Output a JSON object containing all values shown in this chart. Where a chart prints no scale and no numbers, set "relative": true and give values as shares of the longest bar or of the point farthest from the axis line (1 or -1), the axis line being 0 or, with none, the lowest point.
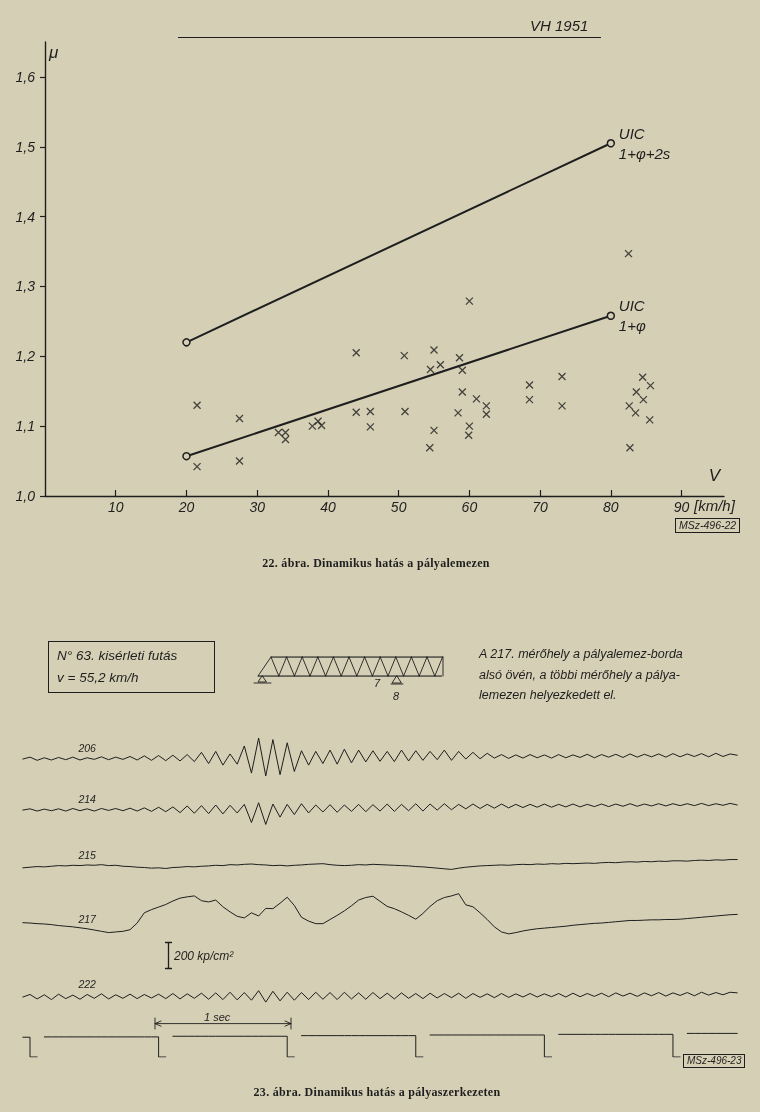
{
  "chart_data": [
    {
      "type": "scatter",
      "title": "22. ábra. Dinamikus hatás a pályalemezen",
      "subtitle": "VH 1951",
      "xlabel": "V",
      "ylabel": "μ",
      "annotations": [
        "[km/h]",
        "MSz-496-22"
      ],
      "xlim": [
        0,
        96
      ],
      "ylim": [
        1.0,
        1.65
      ],
      "xticks": [
        10,
        20,
        30,
        40,
        50,
        60,
        70,
        80,
        90
      ],
      "yticks": [
        {
          "value": 1.0,
          "label": "1,0"
        },
        {
          "value": 1.1,
          "label": "1,1"
        },
        {
          "value": 1.2,
          "label": "1,2"
        },
        {
          "value": 1.3,
          "label": "1,3"
        },
        {
          "value": 1.4,
          "label": "1,4"
        },
        {
          "value": 1.5,
          "label": "1,5"
        },
        {
          "value": 1.6,
          "label": "1,6"
        }
      ],
      "series": [
        {
          "type": "scatter",
          "color": "#1e1e1e",
          "marker": "cross",
          "x": [
            21.5,
            21.5,
            27.5,
            27.5,
            33,
            34,
            34,
            37.8,
            38.6,
            39.1,
            44,
            44,
            46,
            46,
            50.8,
            50.9,
            55,
            54.5,
            55.9,
            55,
            54.4,
            58.6,
            59,
            59,
            58.4,
            61,
            62.4,
            62.4,
            60,
            59.9,
            68.5,
            68.5,
            73.1,
            73.1,
            84.5,
            85.6,
            83.6,
            84.6,
            82.6,
            83.5,
            85.5,
            82.7,
            82.5,
            60
          ],
          "values": [
            1.13,
            1.042,
            1.111,
            1.05,
            1.091,
            1.091,
            1.081,
            1.1,
            1.107,
            1.101,
            1.205,
            1.12,
            1.121,
            1.099,
            1.201,
            1.121,
            1.209,
            1.181,
            1.188,
            1.094,
            1.069,
            1.198,
            1.18,
            1.149,
            1.119,
            1.139,
            1.129,
            1.117,
            1.1,
            1.087,
            1.159,
            1.138,
            1.171,
            1.129,
            1.17,
            1.158,
            1.149,
            1.138,
            1.129,
            1.119,
            1.109,
            1.069,
            1.347,
            1.279
          ]
        },
        {
          "type": "line",
          "name": "UIC 1+φ+2s",
          "color": "#1e1e1e",
          "marker": "circle",
          "x": [
            20,
            80
          ],
          "values": [
            1.22,
            1.505
          ]
        },
        {
          "type": "line",
          "name": "UIC 1+φ",
          "color": "#1e1e1e",
          "marker": "circle",
          "x": [
            20,
            80
          ],
          "values": [
            1.057,
            1.258
          ]
        }
      ]
    },
    {
      "type": "line",
      "title": "23. ábra. Dinamikus hatás a pályaszerkezeten",
      "relative": true,
      "annotations": [
        "N° 63. kisérleti futás\nv = 55,2 km/h",
        "A 217. mérőhely a pályalemez-borda\nalsó övén, a többi mérőhely a pálya-\nlemezen helyezkedett el.",
        "7",
        "8",
        "200 kp/cm²",
        "1 sec",
        "MSz-496-23"
      ],
      "categories": [
        null,
        null,
        null,
        null,
        null,
        null,
        null,
        null,
        null,
        null,
        null,
        null,
        null,
        null,
        null,
        null,
        null,
        null,
        null,
        null,
        null,
        null,
        null,
        null,
        null,
        null,
        null,
        null,
        null,
        null,
        null,
        null,
        null,
        null,
        null,
        null,
        null,
        null,
        null,
        null,
        null,
        null,
        null,
        null,
        null,
        null,
        null,
        null,
        null,
        null,
        null,
        null,
        null,
        null,
        null,
        null,
        null,
        null,
        null,
        null,
        null,
        null,
        null,
        null,
        null,
        null,
        null,
        null,
        null,
        null,
        null,
        null,
        null,
        null,
        null,
        null,
        null,
        null,
        null,
        null,
        null,
        null,
        null,
        null,
        null,
        null,
        null,
        null,
        null,
        null,
        null,
        null,
        null,
        null,
        null,
        null,
        null,
        null,
        null,
        null,
        null
      ],
      "series": [
        {
          "type": "line",
          "name": "206",
          "color": "#1e1e1e",
          "values": [
            0.934,
            0.94,
            0.93,
            0.938,
            0.931,
            0.939,
            0.932,
            0.94,
            0.931,
            0.938,
            0.933,
            0.941,
            0.932,
            0.94,
            0.933,
            0.942,
            0.931,
            0.944,
            0.93,
            0.945,
            0.929,
            0.946,
            0.928,
            0.948,
            0.926,
            0.955,
            0.92,
            0.958,
            0.915,
            0.95,
            0.918,
            0.975,
            0.89,
            1,
            0.881,
            0.995,
            0.885,
            0.985,
            0.895,
            0.96,
            0.915,
            0.958,
            0.92,
            0.962,
            0.918,
            0.965,
            0.922,
            0.962,
            0.925,
            0.96,
            0.927,
            0.958,
            0.926,
            0.962,
            0.928,
            0.96,
            0.93,
            0.958,
            0.932,
            0.962,
            0.93,
            0.958,
            0.934,
            0.955,
            0.935,
            0.952,
            0.937,
            0.948,
            0.936,
            0.947,
            0.937,
            0.948,
            0.938,
            0.947,
            0.937,
            0.948,
            0.938,
            0.947,
            0.939,
            0.949,
            0.938,
            0.948,
            0.94,
            0.949,
            0.939,
            0.95,
            0.94,
            0.949,
            0.941,
            0.95,
            0.94,
            0.951,
            0.941,
            0.95,
            0.942,
            0.951,
            0.941,
            0.952,
            0.942,
            0.95,
            0.946
          ]
        },
        {
          "type": "line",
          "name": "214",
          "color": "#1e1e1e",
          "values": [
            0.774,
            0.778,
            0.771,
            0.777,
            0.772,
            0.778,
            0.771,
            0.779,
            0.772,
            0.778,
            0.771,
            0.779,
            0.773,
            0.779,
            0.772,
            0.78,
            0.771,
            0.781,
            0.77,
            0.783,
            0.769,
            0.784,
            0.766,
            0.787,
            0.764,
            0.788,
            0.763,
            0.79,
            0.762,
            0.789,
            0.765,
            0.792,
            0.735,
            0.797,
            0.729,
            0.793,
            0.752,
            0.792,
            0.76,
            0.794,
            0.765,
            0.79,
            0.768,
            0.791,
            0.767,
            0.79,
            0.77,
            0.792,
            0.769,
            0.791,
            0.771,
            0.793,
            0.77,
            0.792,
            0.772,
            0.794,
            0.771,
            0.793,
            0.774,
            0.794,
            0.775,
            0.792,
            0.778,
            0.793,
            0.779,
            0.792,
            0.78,
            0.793,
            0.781,
            0.792,
            0.782,
            0.792,
            0.783,
            0.793,
            0.783,
            0.792,
            0.784,
            0.793,
            0.784,
            0.792,
            0.785,
            0.793,
            0.785,
            0.793,
            0.786,
            0.794,
            0.786,
            0.793,
            0.787,
            0.794,
            0.787,
            0.794,
            0.788,
            0.794,
            0.788,
            0.795,
            0.788,
            0.794,
            0.789,
            0.795,
            0.79
          ]
        },
        {
          "type": "line",
          "name": "215",
          "color": "#1e1e1e",
          "values": [
            0.593,
            0.595,
            0.597,
            0.596,
            0.598,
            0.6,
            0.599,
            0.601,
            0.6,
            0.602,
            0.601,
            0.603,
            0.6,
            0.601,
            0.598,
            0.597,
            0.595,
            0.594,
            0.592,
            0.593,
            0.591,
            0.594,
            0.595,
            0.597,
            0.596,
            0.598,
            0.599,
            0.601,
            0.6,
            0.603,
            0.602,
            0.604,
            0.605,
            0.603,
            0.602,
            0.6,
            0.601,
            0.599,
            0.601,
            0.602,
            0.604,
            0.605,
            0.606,
            0.603,
            0.601,
            0.6,
            0.601,
            0.603,
            0.602,
            0.604,
            0.603,
            0.602,
            0.601,
            0.6,
            0.599,
            0.597,
            0.596,
            0.594,
            0.592,
            0.59,
            0.588,
            0.592,
            0.595,
            0.597,
            0.599,
            0.6,
            0.601,
            0.602,
            0.601,
            0.603,
            0.604,
            0.603,
            0.605,
            0.604,
            0.606,
            0.605,
            0.607,
            0.606,
            0.607,
            0.608,
            0.607,
            0.609,
            0.61,
            0.609,
            0.611,
            0.612,
            0.611,
            0.613,
            0.612,
            0.614,
            0.613,
            0.615,
            0.615,
            0.614,
            0.616,
            0.617,
            0.616,
            0.618,
            0.617,
            0.619,
            0.619
          ]
        },
        {
          "type": "line",
          "name": "217",
          "color": "#1e1e1e",
          "values": [
            0.421,
            0.42,
            0.418,
            0.417,
            0.415,
            0.412,
            0.41,
            0.408,
            0.405,
            0.402,
            0.398,
            0.394,
            0.39,
            0.392,
            0.394,
            0.399,
            0.42,
            0.452,
            0.462,
            0.47,
            0.478,
            0.489,
            0.498,
            0.502,
            0.505,
            0.49,
            0.486,
            0.492,
            0.471,
            0.455,
            0.441,
            0.436,
            0.452,
            0.442,
            0.466,
            0.465,
            0.482,
            0.501,
            0.475,
            0.438,
            0.426,
            0.418,
            0.418,
            0.431,
            0.444,
            0.458,
            0.474,
            0.492,
            0.5,
            0.504,
            0.488,
            0.472,
            0.465,
            0.455,
            0.444,
            0.432,
            0.45,
            0.472,
            0.49,
            0.5,
            0.505,
            0.512,
            0.477,
            0.471,
            0.452,
            0.431,
            0.408,
            0.392,
            0.386,
            0.39,
            0.395,
            0.399,
            0.402,
            0.404,
            0.406,
            0.408,
            0.41,
            0.413,
            0.415,
            0.417,
            0.419,
            0.42,
            0.422,
            0.424,
            0.426,
            0.428,
            0.428,
            0.429,
            0.43,
            0.43,
            0.431,
            0.431,
            0.432,
            0.434,
            0.436,
            0.438,
            0.44,
            0.442,
            0.444,
            0.446,
            0.447
          ]
        },
        {
          "type": "line",
          "name": "222",
          "color": "#1e1e1e",
          "values": [
            0.188,
            0.196,
            0.182,
            0.195,
            0.18,
            0.197,
            0.183,
            0.194,
            0.181,
            0.196,
            0.184,
            0.198,
            0.182,
            0.195,
            0.184,
            0.197,
            0.183,
            0.196,
            0.185,
            0.197,
            0.183,
            0.199,
            0.182,
            0.198,
            0.184,
            0.2,
            0.181,
            0.201,
            0.18,
            0.203,
            0.179,
            0.202,
            0.178,
            0.208,
            0.172,
            0.206,
            0.176,
            0.203,
            0.178,
            0.202,
            0.18,
            0.203,
            0.181,
            0.202,
            0.18,
            0.203,
            0.182,
            0.201,
            0.181,
            0.202,
            0.183,
            0.2,
            0.182,
            0.201,
            0.184,
            0.199,
            0.183,
            0.2,
            0.185,
            0.199,
            0.186,
            0.2,
            0.184,
            0.199,
            0.187,
            0.198,
            0.186,
            0.199,
            0.187,
            0.198,
            0.188,
            0.199,
            0.188,
            0.198,
            0.189,
            0.199,
            0.188,
            0.2,
            0.189,
            0.199,
            0.19,
            0.2,
            0.189,
            0.201,
            0.191,
            0.2,
            0.19,
            0.201,
            0.192,
            0.202,
            0.191,
            0.201,
            0.193,
            0.202,
            0.192,
            0.203,
            0.194,
            0.202,
            0.195,
            0.203,
            0.201
          ]
        },
        {
          "type": "step",
          "color": "#1e1e1e",
          "values": [
            0.062,
            0,
            null,
            0.063,
            0.063,
            0.063,
            0.063,
            0.063,
            0.063,
            0.063,
            0.063,
            0.063,
            0.063,
            0.063,
            0.063,
            0.063,
            0.063,
            0.063,
            0.063,
            0,
            null,
            0.065,
            0.065,
            0.065,
            0.065,
            0.065,
            0.065,
            0.065,
            0.065,
            0.065,
            0.065,
            0.065,
            0.065,
            0.065,
            0.065,
            0.065,
            0.065,
            0,
            null,
            0.067,
            0.067,
            0.067,
            0.067,
            0.067,
            0.067,
            0.067,
            0.067,
            0.067,
            0.067,
            0.067,
            0.067,
            0.067,
            0.067,
            0.067,
            0.067,
            0,
            null,
            0.069,
            0.069,
            0.069,
            0.069,
            0.069,
            0.069,
            0.069,
            0.069,
            0.069,
            0.069,
            0.069,
            0.069,
            0.069,
            0.069,
            0.069,
            0.069,
            0,
            null,
            0.071,
            0.071,
            0.071,
            0.071,
            0.071,
            0.071,
            0.071,
            0.071,
            0.071,
            0.071,
            0.071,
            0.071,
            0.071,
            0.071,
            0.071,
            0.071,
            0,
            null,
            0.074,
            0.074,
            0.074,
            0.074,
            0.074,
            0.074,
            0.074,
            0.074
          ]
        }
      ]
    }
  ]
}
